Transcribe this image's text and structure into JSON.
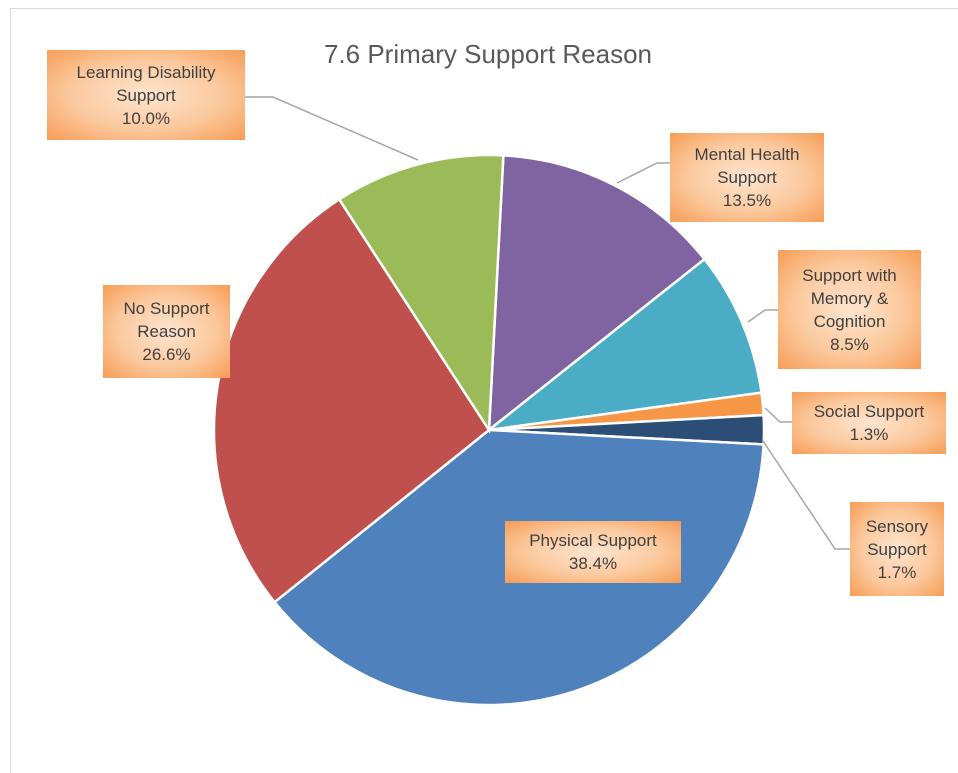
{
  "chart_data": {
    "type": "pie",
    "title": "7.6 Primary Support Reason",
    "categories": [
      "Mental Health Support",
      "Support with Memory & Cognition",
      "Social Support",
      "Sensory Support",
      "Physical Support",
      "No Support Reason",
      "Learning Disability Support"
    ],
    "values": [
      13.5,
      8.5,
      1.3,
      1.7,
      38.4,
      26.6,
      10.0
    ],
    "value_labels": [
      "13.5%",
      "8.5%",
      "1.3%",
      "1.7%",
      "38.4%",
      "26.6%",
      "10.0%"
    ],
    "colors": [
      "#8064a2",
      "#4bacc6",
      "#f79646",
      "#2c4d75",
      "#4f81bd",
      "#c0504d",
      "#9bbb59"
    ]
  }
}
